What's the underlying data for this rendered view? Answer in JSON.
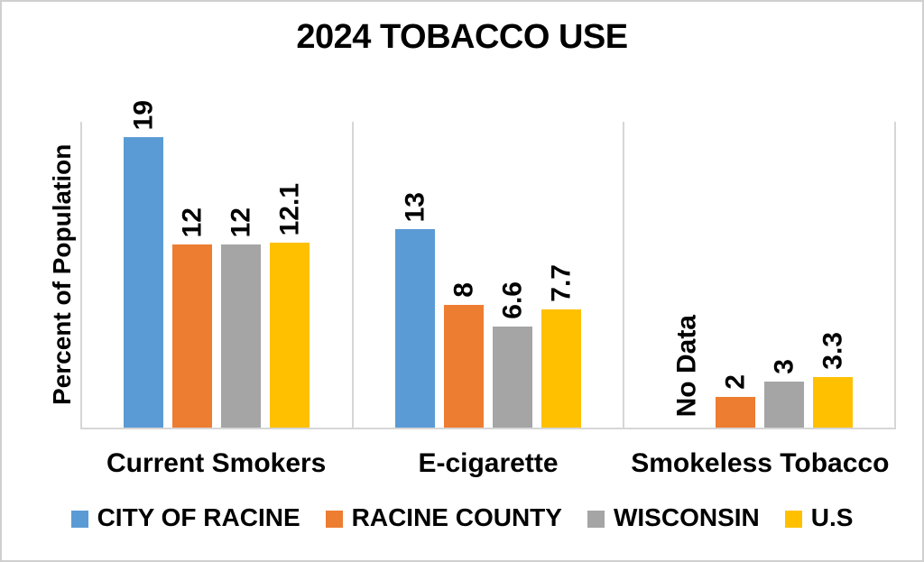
{
  "chart_data": {
    "type": "bar",
    "title": "2024 TOBACCO USE",
    "ylabel": "Percent of Population",
    "xlabel": "",
    "ylim": [
      0,
      20
    ],
    "grid": "vertical category divider lines only, no horizontal gridlines, no y tick labels",
    "legend_position": "bottom",
    "categories": [
      "Current Smokers",
      "E-cigarette",
      "Smokeless Tobacco"
    ],
    "series": [
      {
        "name": "CITY OF RACINE",
        "color": "#5B9BD5",
        "values": [
          19,
          13,
          null
        ]
      },
      {
        "name": "RACINE COUNTY",
        "color": "#ED7D31",
        "values": [
          12,
          8,
          2
        ]
      },
      {
        "name": "WISCONSIN",
        "color": "#A5A5A5",
        "values": [
          12,
          6.6,
          3
        ]
      },
      {
        "name": "U.S",
        "color": "#FFC000",
        "values": [
          12.1,
          7.7,
          3.3
        ]
      }
    ],
    "null_label": "No Data",
    "data_label_rotation": "90deg counterclockwise (reads bottom to top)",
    "colors": {
      "axis_line": "#D6D6D6",
      "text": "#000000",
      "background": "#FFFFFF",
      "canvas_border": "#CFCFCF"
    }
  }
}
